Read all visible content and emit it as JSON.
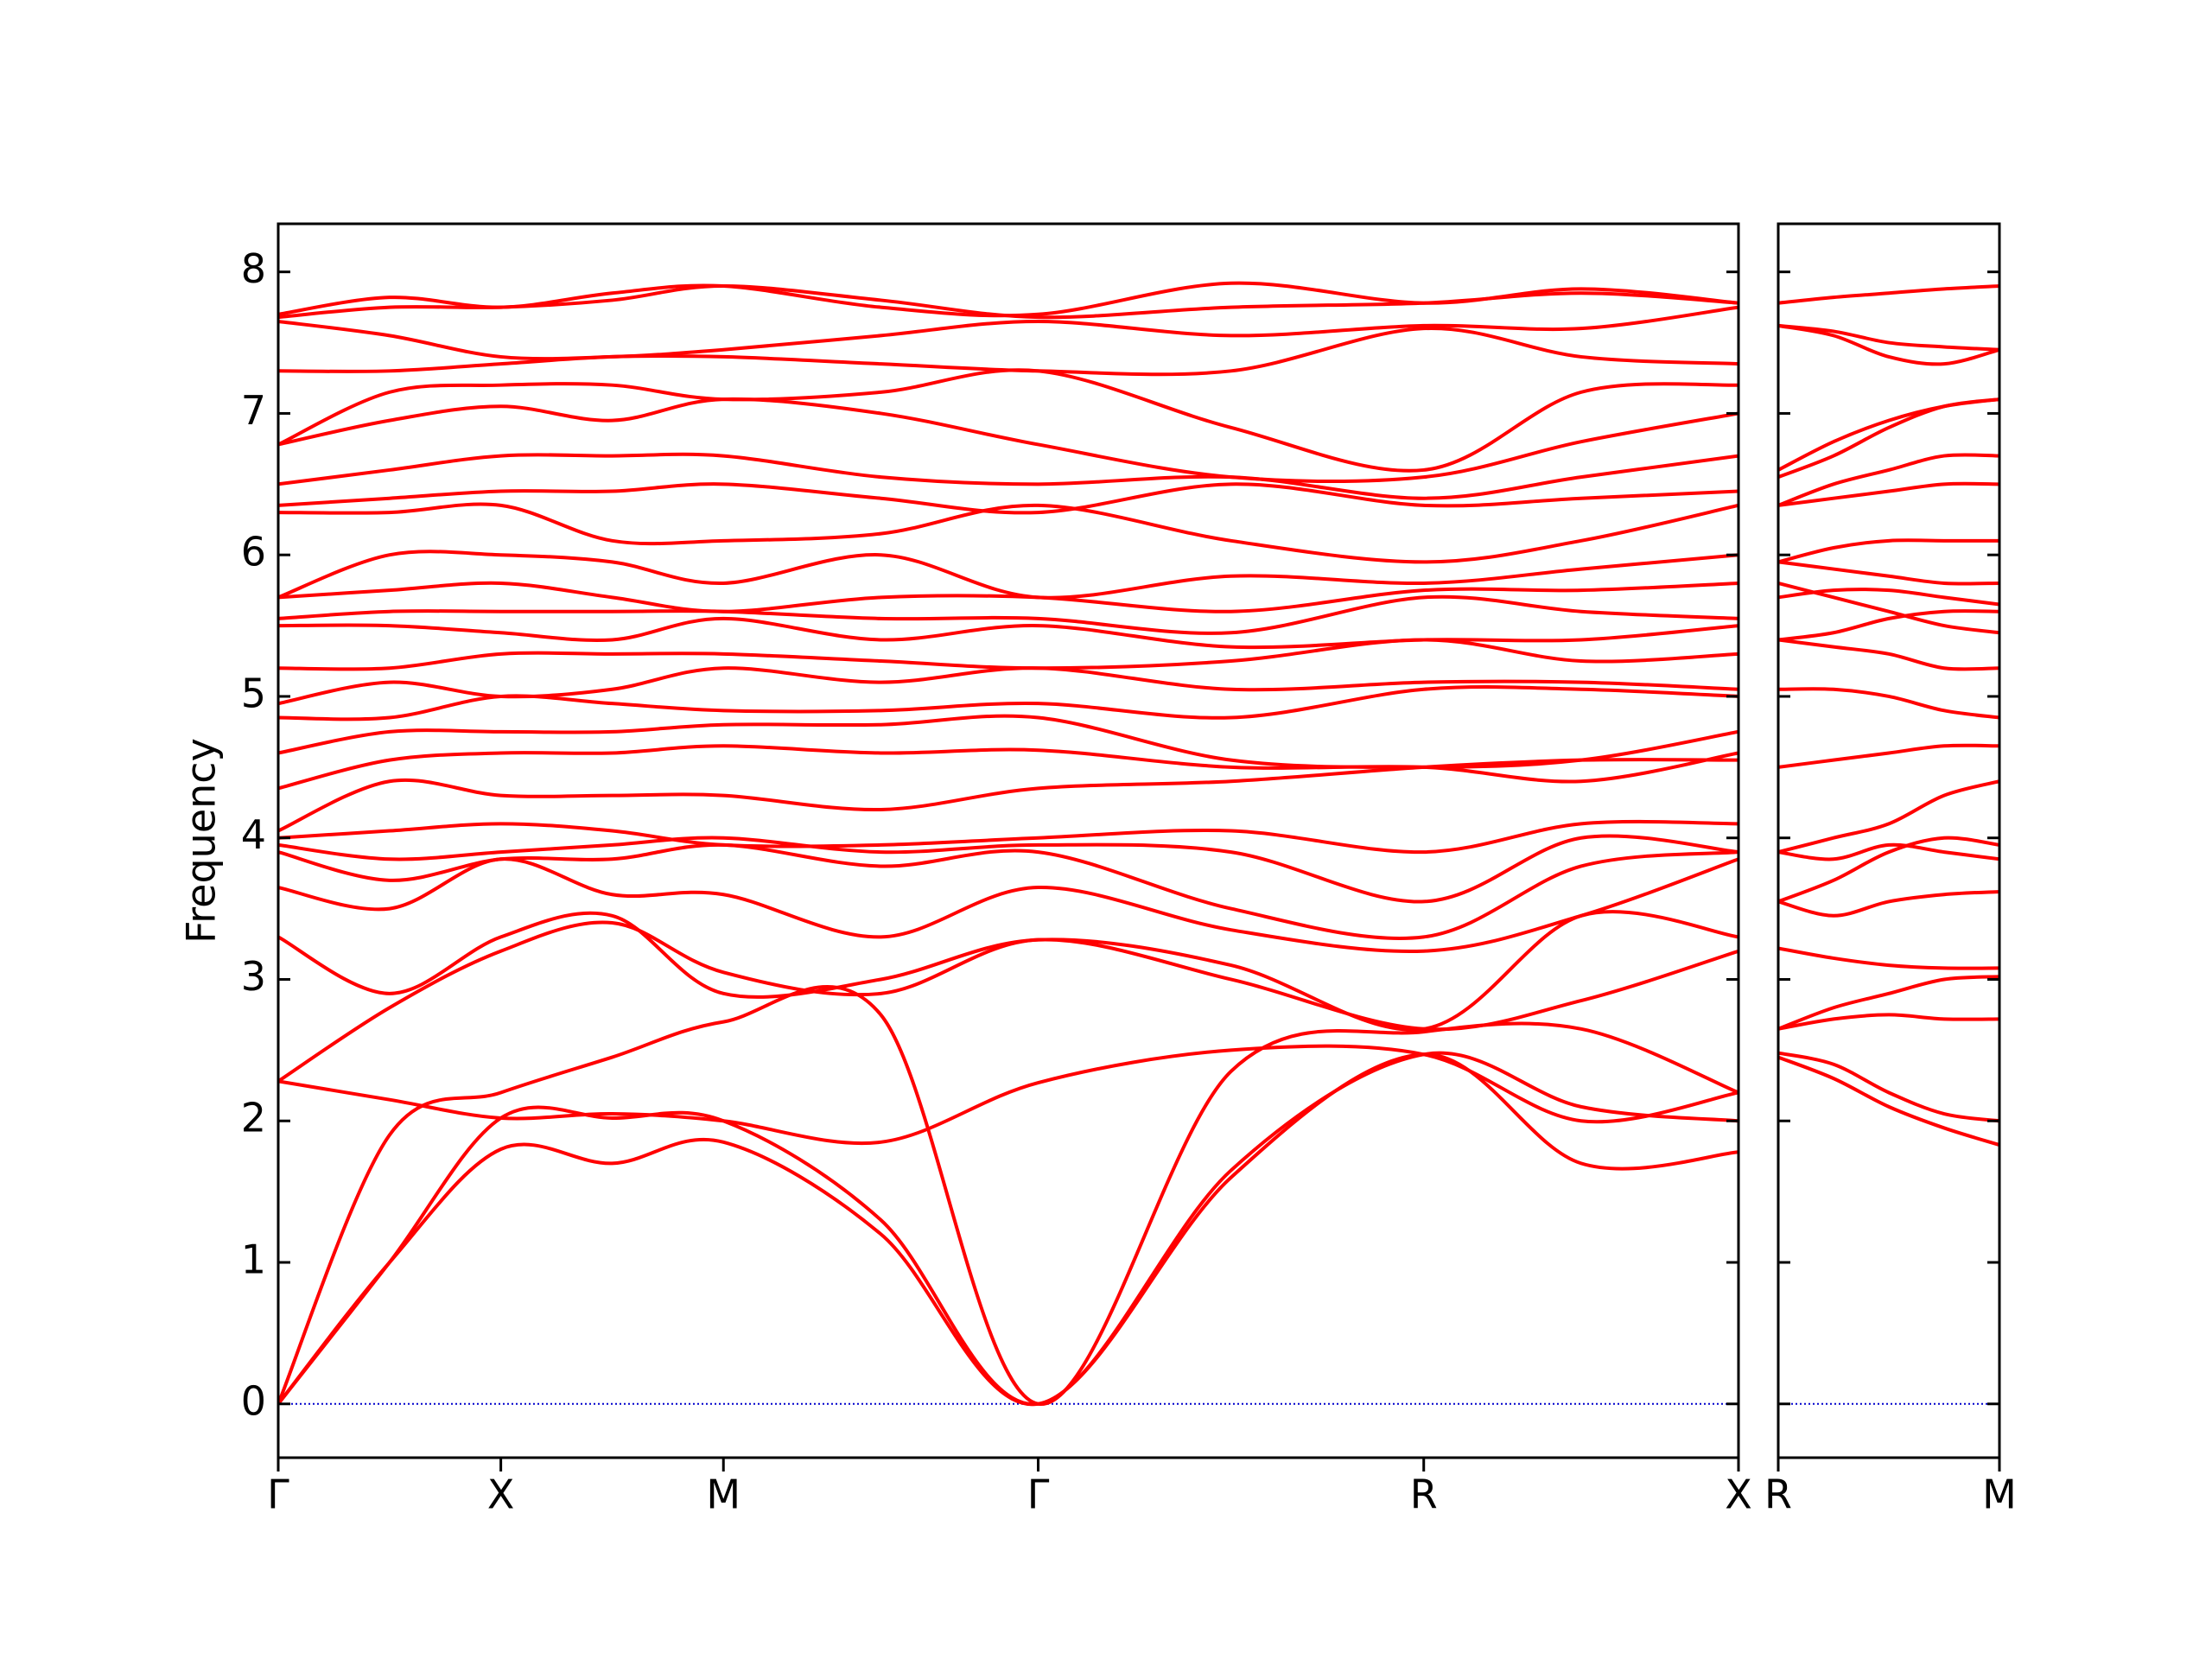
{
  "chart_data": [
    {
      "type": "line",
      "ylabel": "Frequency",
      "color": "#ff0000",
      "x": [
        0,
        0.5,
        1,
        1.5,
        2,
        2.707,
        3.414,
        4.28,
        5.146,
        5.853,
        6.56
      ],
      "xlim": [
        0,
        6.56
      ],
      "xticks": [
        {
          "value": 0,
          "label": "Γ"
        },
        {
          "value": 1,
          "label": "X"
        },
        {
          "value": 2,
          "label": "M"
        },
        {
          "value": 3.414,
          "label": "Γ"
        },
        {
          "value": 5.146,
          "label": "R"
        },
        {
          "value": 6.56,
          "label": "X"
        }
      ],
      "ylim": [
        -0.38,
        8.34
      ],
      "yticks": [
        0,
        1,
        2,
        3,
        4,
        5,
        6,
        7,
        8
      ],
      "zero_line": {
        "value": 0,
        "color": "#0000cc"
      },
      "series": [
        {
          "values": [
            0,
            1.0,
            1.8,
            1.7,
            1.85,
            1.2,
            0,
            1.6,
            2.47,
            1.7,
            1.78
          ]
        },
        {
          "values": [
            0,
            1.0,
            2.02,
            2.02,
            2.0,
            1.3,
            0,
            1.65,
            2.47,
            2.1,
            2.0
          ]
        },
        {
          "values": [
            0,
            1.9,
            2.2,
            2.45,
            2.7,
            2.75,
            0,
            2.35,
            2.63,
            2.65,
            2.2
          ]
        },
        {
          "values": [
            2.28,
            2.15,
            2.02,
            2.05,
            2.0,
            1.85,
            2.27,
            2.5,
            2.47,
            2.0,
            2.2
          ]
        },
        {
          "values": [
            2.28,
            2.8,
            3.2,
            3.4,
            3.05,
            2.9,
            3.28,
            3.0,
            2.65,
            2.85,
            3.2
          ]
        },
        {
          "values": [
            3.3,
            2.9,
            3.3,
            3.45,
            2.9,
            3.0,
            3.28,
            3.1,
            2.65,
            3.45,
            3.3
          ]
        },
        {
          "values": [
            3.65,
            3.5,
            3.85,
            3.6,
            3.6,
            3.3,
            3.65,
            3.35,
            3.2,
            3.45,
            3.85
          ]
        },
        {
          "values": [
            3.9,
            3.7,
            3.85,
            3.85,
            3.95,
            3.8,
            3.9,
            3.5,
            3.3,
            3.8,
            3.9
          ]
        },
        {
          "values": [
            3.95,
            3.85,
            3.9,
            3.95,
            4.0,
            3.9,
            3.95,
            3.9,
            3.55,
            4.0,
            3.9
          ]
        },
        {
          "values": [
            4.0,
            4.05,
            4.1,
            4.05,
            3.95,
            3.95,
            4.0,
            4.05,
            3.9,
            4.1,
            4.1
          ]
        },
        {
          "values": [
            4.05,
            4.4,
            4.3,
            4.3,
            4.3,
            4.2,
            4.35,
            4.4,
            4.5,
            4.55,
            4.55
          ]
        },
        {
          "values": [
            4.35,
            4.55,
            4.6,
            4.6,
            4.65,
            4.6,
            4.62,
            4.5,
            4.5,
            4.4,
            4.6
          ]
        },
        {
          "values": [
            4.6,
            4.75,
            4.75,
            4.75,
            4.8,
            4.8,
            4.85,
            4.55,
            4.5,
            4.55,
            4.75
          ]
        },
        {
          "values": [
            4.85,
            4.85,
            5.0,
            4.95,
            4.9,
            4.9,
            4.95,
            4.85,
            5.05,
            5.05,
            5.0
          ]
        },
        {
          "values": [
            4.95,
            5.1,
            5.0,
            5.05,
            5.2,
            5.1,
            5.2,
            5.05,
            5.1,
            5.1,
            5.05
          ]
        },
        {
          "values": [
            5.2,
            5.2,
            5.3,
            5.3,
            5.3,
            5.25,
            5.2,
            5.25,
            5.4,
            5.25,
            5.3
          ]
        },
        {
          "values": [
            5.5,
            5.5,
            5.45,
            5.4,
            5.55,
            5.4,
            5.5,
            5.35,
            5.4,
            5.4,
            5.5
          ]
        },
        {
          "values": [
            5.55,
            5.6,
            5.6,
            5.6,
            5.6,
            5.55,
            5.55,
            5.45,
            5.7,
            5.6,
            5.55
          ]
        },
        {
          "values": [
            5.7,
            5.75,
            5.8,
            5.7,
            5.6,
            5.7,
            5.7,
            5.6,
            5.75,
            5.75,
            5.8
          ]
        },
        {
          "values": [
            5.7,
            6.0,
            6.0,
            5.95,
            5.8,
            6.0,
            5.7,
            5.85,
            5.8,
            5.9,
            6.0
          ]
        },
        {
          "values": [
            6.3,
            6.3,
            6.35,
            6.1,
            6.1,
            6.15,
            6.35,
            6.1,
            5.95,
            6.1,
            6.35
          ]
        },
        {
          "values": [
            6.35,
            6.4,
            6.45,
            6.45,
            6.5,
            6.4,
            6.3,
            6.5,
            6.35,
            6.4,
            6.45
          ]
        },
        {
          "values": [
            6.5,
            6.6,
            6.7,
            6.7,
            6.7,
            6.55,
            6.5,
            6.55,
            6.4,
            6.55,
            6.7
          ]
        },
        {
          "values": [
            6.78,
            6.95,
            7.05,
            6.95,
            7.1,
            7.0,
            6.78,
            6.55,
            6.55,
            6.8,
            7.0
          ]
        },
        {
          "values": [
            6.78,
            7.15,
            7.2,
            7.2,
            7.1,
            7.15,
            7.3,
            6.9,
            6.6,
            7.15,
            7.2
          ]
        },
        {
          "values": [
            7.3,
            7.3,
            7.35,
            7.4,
            7.4,
            7.35,
            7.3,
            7.3,
            7.6,
            7.4,
            7.35
          ]
        },
        {
          "values": [
            7.65,
            7.55,
            7.4,
            7.4,
            7.45,
            7.55,
            7.65,
            7.55,
            7.62,
            7.6,
            7.75
          ]
        },
        {
          "values": [
            7.68,
            7.75,
            7.75,
            7.8,
            7.9,
            7.8,
            7.68,
            7.75,
            7.78,
            7.85,
            7.78
          ]
        },
        {
          "values": [
            7.7,
            7.82,
            7.75,
            7.85,
            7.9,
            7.75,
            7.7,
            7.92,
            7.78,
            7.88,
            7.78
          ]
        }
      ]
    },
    {
      "type": "line",
      "color": "#ff0000",
      "x": [
        0,
        0.25,
        0.5,
        0.75,
        1
      ],
      "xlim": [
        0,
        1
      ],
      "xticks": [
        {
          "value": 0,
          "label": "R"
        },
        {
          "value": 1,
          "label": "M"
        }
      ],
      "series": [
        {
          "values": [
            2.45,
            2.3,
            2.1,
            1.95,
            1.83
          ]
        },
        {
          "values": [
            2.48,
            2.4,
            2.2,
            2.05,
            2.0
          ]
        },
        {
          "values": [
            2.65,
            2.72,
            2.75,
            2.72,
            2.72
          ]
        },
        {
          "values": [
            2.65,
            2.8,
            2.9,
            3.0,
            3.02
          ]
        },
        {
          "values": [
            3.22,
            3.15,
            3.1,
            3.08,
            3.08
          ]
        },
        {
          "values": [
            3.55,
            3.45,
            3.55,
            3.6,
            3.62
          ]
        },
        {
          "values": [
            3.9,
            3.85,
            3.95,
            3.9,
            3.85
          ]
        },
        {
          "values": [
            3.55,
            3.7,
            3.9,
            4.0,
            3.95
          ]
        },
        {
          "values": [
            4.5,
            4.55,
            4.6,
            4.65,
            4.65
          ]
        },
        {
          "values": [
            3.9,
            4.0,
            4.1,
            4.3,
            4.4
          ]
        },
        {
          "values": [
            5.05,
            5.05,
            5.0,
            4.9,
            4.85
          ]
        },
        {
          "values": [
            5.4,
            5.35,
            5.3,
            5.2,
            5.2
          ]
        },
        {
          "values": [
            5.4,
            5.45,
            5.55,
            5.6,
            5.6
          ]
        },
        {
          "values": [
            5.7,
            5.75,
            5.75,
            5.7,
            5.65
          ]
        },
        {
          "values": [
            5.8,
            5.7,
            5.6,
            5.5,
            5.45
          ]
        },
        {
          "values": [
            5.95,
            5.9,
            5.85,
            5.8,
            5.8
          ]
        },
        {
          "values": [
            5.95,
            6.05,
            6.1,
            6.1,
            6.1
          ]
        },
        {
          "values": [
            6.35,
            6.4,
            6.45,
            6.5,
            6.5
          ]
        },
        {
          "values": [
            6.35,
            6.5,
            6.6,
            6.7,
            6.7
          ]
        },
        {
          "values": [
            6.6,
            6.8,
            6.95,
            7.05,
            7.1
          ]
        },
        {
          "values": [
            6.55,
            6.7,
            6.9,
            7.05,
            7.1
          ]
        },
        {
          "values": [
            7.62,
            7.55,
            7.4,
            7.35,
            7.45
          ]
        },
        {
          "values": [
            7.62,
            7.58,
            7.5,
            7.47,
            7.45
          ]
        },
        {
          "values": [
            7.78,
            7.82,
            7.85,
            7.88,
            7.9
          ]
        }
      ]
    }
  ]
}
